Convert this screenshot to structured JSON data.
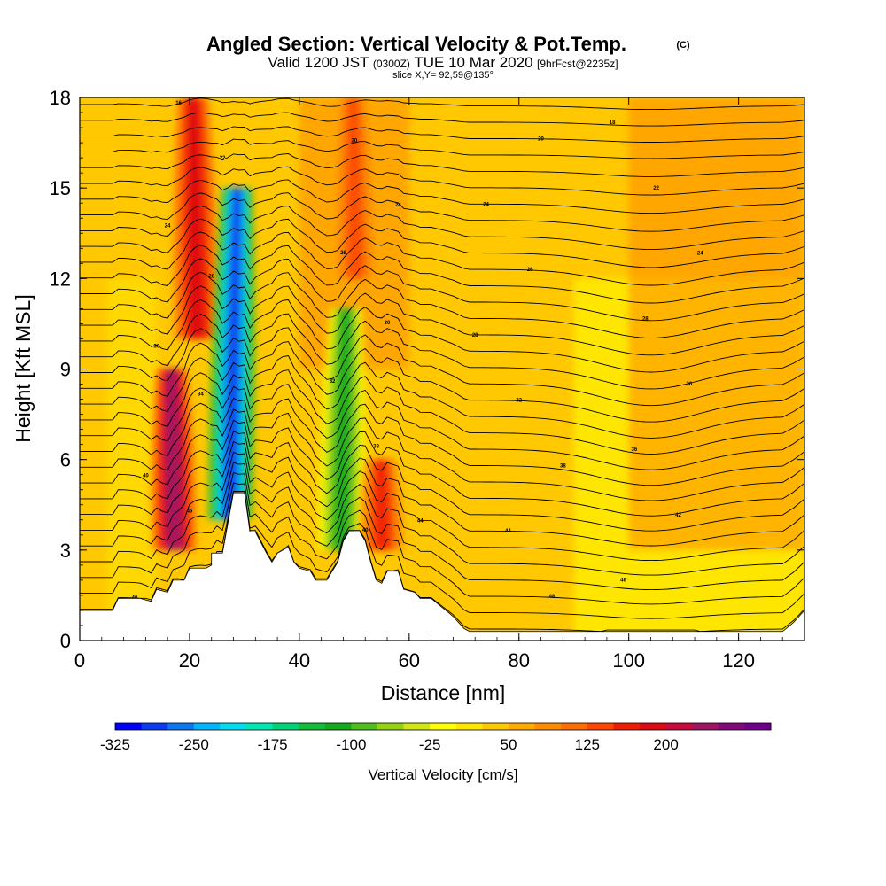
{
  "title": {
    "main": "Angled Section: Vertical Velocity & Pot.Temp.",
    "main_suffix": "(C)",
    "valid_prefix": "Valid 1200 JST",
    "valid_utc": "(0300Z)",
    "valid_date": "TUE 10 Mar 2020",
    "forecast": "[9hrFcst@2235z]",
    "slice": "slice X,Y= 92,59@135°"
  },
  "chart_data": {
    "type": "heatmap",
    "title": "Angled Section: Vertical Velocity & Pot.Temp.",
    "xlabel": "Distance [nm]",
    "ylabel": "Height [Kft MSL]",
    "xlim": [
      0,
      132
    ],
    "ylim": [
      0,
      18
    ],
    "x_ticks": [
      "0",
      "20",
      "40",
      "60",
      "80",
      "100",
      "120"
    ],
    "y_ticks": [
      "0",
      "3",
      "6",
      "9",
      "12",
      "15",
      "18"
    ],
    "grid": false,
    "colorbar": {
      "label": "Vertical Velocity [cm/s]",
      "tick_labels": [
        "-325",
        "-250",
        "-175",
        "-100",
        "-25",
        "50",
        "125",
        "200"
      ],
      "colors": [
        "#0000ff",
        "#0a3cf0",
        "#0a78f0",
        "#00b4ff",
        "#00dcf0",
        "#00e6b4",
        "#00d278",
        "#14be3c",
        "#14aa1e",
        "#50be1e",
        "#96d214",
        "#d2e614",
        "#ffff00",
        "#ffe600",
        "#ffc800",
        "#ffaa00",
        "#ff8c00",
        "#ff6e00",
        "#ff4600",
        "#f01e00",
        "#dc0a14",
        "#c80a3c",
        "#a01464",
        "#820a78",
        "#6e008c"
      ]
    },
    "terrain_profile_kft": [
      [
        0,
        1
      ],
      [
        6,
        1
      ],
      [
        7,
        1.4
      ],
      [
        8,
        1.4
      ],
      [
        11,
        1.4
      ],
      [
        13,
        1.3
      ],
      [
        14,
        1.7
      ],
      [
        16,
        1.6
      ],
      [
        17,
        2
      ],
      [
        19,
        2
      ],
      [
        20,
        2.4
      ],
      [
        23,
        2.4
      ],
      [
        24,
        2.5
      ],
      [
        24,
        2.9
      ],
      [
        26,
        2.9
      ],
      [
        27,
        3.9
      ],
      [
        28,
        4.9
      ],
      [
        30,
        4.9
      ],
      [
        31,
        3.6
      ],
      [
        32,
        3.6
      ],
      [
        34,
        2.9
      ],
      [
        35,
        2.6
      ],
      [
        36,
        2.9
      ],
      [
        38,
        3.1
      ],
      [
        39,
        2.6
      ],
      [
        40,
        2.4
      ],
      [
        42,
        2.3
      ],
      [
        43,
        2
      ],
      [
        45,
        2
      ],
      [
        46,
        2.3
      ],
      [
        47,
        2.6
      ],
      [
        48,
        3.3
      ],
      [
        49,
        3.6
      ],
      [
        51,
        3.6
      ],
      [
        52,
        3.3
      ],
      [
        53,
        2.6
      ],
      [
        54,
        2
      ],
      [
        55,
        1.9
      ],
      [
        56,
        2.3
      ],
      [
        58,
        2.3
      ],
      [
        59,
        1.7
      ],
      [
        61,
        1.6
      ],
      [
        62,
        1.4
      ],
      [
        64,
        1.4
      ],
      [
        66,
        1.1
      ],
      [
        68,
        0.8
      ],
      [
        69,
        0.6
      ],
      [
        70,
        0.4
      ],
      [
        71,
        0.3
      ],
      [
        128,
        0.3
      ],
      [
        130,
        0.6
      ],
      [
        132,
        1
      ]
    ],
    "vertical_velocity_features_cms": [
      {
        "x": 21,
        "ybot": 10,
        "ytop": 18,
        "peak": 150
      },
      {
        "x": 17,
        "ybot": 3,
        "ytop": 9,
        "peak": 200
      },
      {
        "x": 28,
        "ybot": 4,
        "ytop": 15,
        "peak": -300
      },
      {
        "x": 48,
        "ybot": 3,
        "ytop": 11,
        "peak": -125
      },
      {
        "x": 55,
        "ybot": 3,
        "ytop": 6,
        "peak": 125
      },
      {
        "x": 50,
        "ybot": 12,
        "ytop": 18,
        "peak": 100
      }
    ],
    "isentrope_labels": [
      "40",
      "40",
      "48",
      "46",
      "46",
      "44",
      "44",
      "42",
      "40",
      "38",
      "38",
      "36",
      "34",
      "32",
      "32",
      "30",
      "30",
      "30",
      "28",
      "28",
      "28",
      "26",
      "26",
      "24",
      "24",
      "24",
      "24",
      "22",
      "22",
      "20",
      "20",
      "18",
      "16"
    ]
  }
}
